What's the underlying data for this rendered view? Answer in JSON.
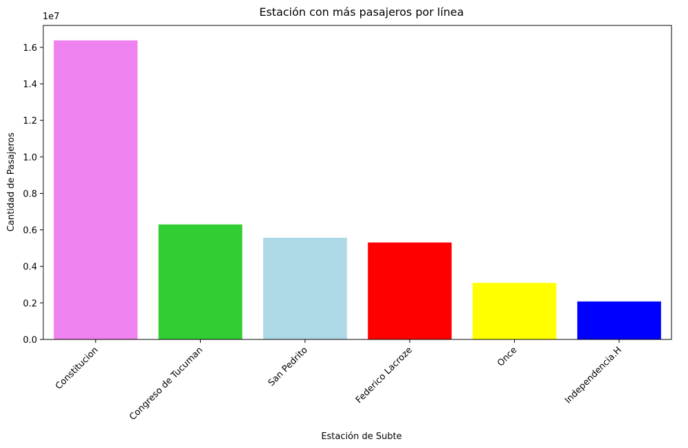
{
  "chart_data": {
    "type": "bar",
    "title": "Estación con más pasajeros por línea",
    "xlabel": "Estación de Subte",
    "ylabel": "Cantidad de Pasajeros",
    "y_offset_label": "1e7",
    "categories": [
      "Constitucion",
      "Congreso de Tucuman",
      "San Pedrito",
      "Federico Lacroze",
      "Once",
      "Independencia.H"
    ],
    "values": [
      16380000,
      6300000,
      5570000,
      5310000,
      3100000,
      2080000
    ],
    "colors": [
      "#ee82ee",
      "#32cd32",
      "#add8e6",
      "#ff0000",
      "#ffff00",
      "#0000ff"
    ],
    "ylim": [
      0,
      17200000
    ],
    "yticks": [
      0,
      2000000,
      4000000,
      6000000,
      8000000,
      10000000,
      12000000,
      14000000,
      16000000
    ],
    "ytick_labels": [
      "0.0",
      "0.2",
      "0.4",
      "0.6",
      "0.8",
      "1.0",
      "1.2",
      "1.4",
      "1.6"
    ],
    "grid": false,
    "legend": "none"
  }
}
